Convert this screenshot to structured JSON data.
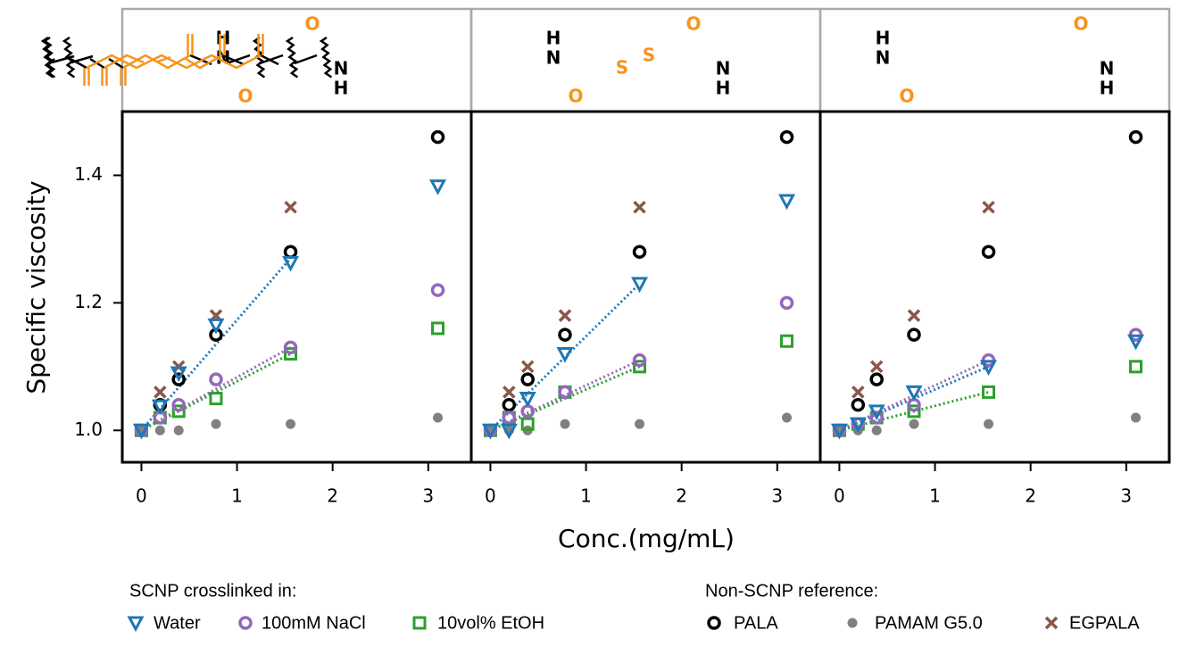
{
  "chart_data": [
    {
      "type": "scatter",
      "xlabel": "Conc.(mg/mL)",
      "ylabel": "Specific viscosity",
      "legend_titles": [
        "SCNP crosslinked in:",
        "Non-SCNP reference:"
      ],
      "structure_atoms": [
        "H",
        "N",
        "O",
        "O",
        "N",
        "H"
      ],
      "x": [
        0,
        0.195,
        0.39,
        0.78,
        1.56,
        3.1
      ],
      "fit_x": [
        0,
        1.56
      ],
      "xlim": [
        -0.2,
        3.45
      ],
      "ylim": [
        0.95,
        1.5
      ],
      "xticks": [
        0,
        1,
        2,
        3
      ],
      "yticks": [
        {
          "value": 1,
          "label": "1.0"
        },
        1.2,
        1.4
      ],
      "series": [
        {
          "name": "Water",
          "color": "#1f77b4",
          "marker": "triangle-down",
          "values": [
            1.0,
            1.038,
            1.09,
            1.165,
            1.263,
            1.383
          ],
          "fit": [
            1.0,
            1.27
          ]
        },
        {
          "name": "100mM NaCl",
          "color": "#9467bd",
          "marker": "circle",
          "values": [
            1.0,
            1.02,
            1.04,
            1.08,
            1.13,
            1.22
          ],
          "fit": [
            1.0,
            1.13
          ]
        },
        {
          "name": "10vol% EtOH",
          "color": "#2ca02c",
          "marker": "square",
          "values": [
            1.0,
            1.02,
            1.03,
            1.05,
            1.12,
            1.16
          ],
          "fit": [
            1.0,
            1.12
          ]
        },
        {
          "name": "PALA",
          "color": "#000000",
          "marker": "circle",
          "values": [
            null,
            1.04,
            1.08,
            1.15,
            1.28,
            1.46
          ]
        },
        {
          "name": "PAMAM G5.0",
          "color": "#808080",
          "marker": "dot",
          "values": [
            1.0,
            1.0,
            1.0,
            1.01,
            1.01,
            1.02
          ]
        },
        {
          "name": "EGPALA",
          "color": "#8c564b",
          "marker": "x",
          "values": [
            null,
            1.06,
            1.1,
            1.18,
            1.35,
            null
          ]
        }
      ]
    },
    {
      "type": "scatter",
      "structure_atoms": [
        "H",
        "N",
        "O",
        "S",
        "S",
        "O",
        "N",
        "H"
      ],
      "x": [
        0,
        0.195,
        0.39,
        0.78,
        1.56,
        3.1
      ],
      "fit_x": [
        0,
        1.56
      ],
      "xlim": [
        -0.2,
        3.45
      ],
      "ylim": [
        0.95,
        1.5
      ],
      "xticks": [
        0,
        1,
        2,
        3
      ],
      "series": [
        {
          "name": "Water",
          "color": "#1f77b4",
          "marker": "triangle-down",
          "values": [
            1.0,
            1.0,
            1.05,
            1.12,
            1.23,
            1.36
          ],
          "fit": [
            1.0,
            1.23
          ]
        },
        {
          "name": "100mM NaCl",
          "color": "#9467bd",
          "marker": "circle",
          "values": [
            1.0,
            1.02,
            1.03,
            1.06,
            1.11,
            1.2
          ],
          "fit": [
            1.0,
            1.11
          ]
        },
        {
          "name": "10vol% EtOH",
          "color": "#2ca02c",
          "marker": "square",
          "values": [
            1.0,
            1.02,
            1.01,
            1.06,
            1.1,
            1.14
          ],
          "fit": [
            1.0,
            1.1
          ]
        },
        {
          "name": "PALA",
          "color": "#000000",
          "marker": "circle",
          "values": [
            null,
            1.04,
            1.08,
            1.15,
            1.28,
            1.46
          ]
        },
        {
          "name": "PAMAM G5.0",
          "color": "#808080",
          "marker": "dot",
          "values": [
            1.0,
            1.0,
            1.0,
            1.01,
            1.01,
            1.02
          ]
        },
        {
          "name": "EGPALA",
          "color": "#8c564b",
          "marker": "x",
          "values": [
            null,
            1.06,
            1.1,
            1.18,
            1.35,
            null
          ]
        }
      ]
    },
    {
      "type": "scatter",
      "structure_atoms": [
        "H",
        "N",
        "O",
        "O",
        "N",
        "H"
      ],
      "x": [
        0,
        0.195,
        0.39,
        0.78,
        1.56,
        3.1
      ],
      "fit_x": [
        0,
        1.56
      ],
      "xlim": [
        -0.2,
        3.45
      ],
      "ylim": [
        0.95,
        1.5
      ],
      "xticks": [
        0,
        1,
        2,
        3
      ],
      "series": [
        {
          "name": "Water",
          "color": "#1f77b4",
          "marker": "triangle-down",
          "values": [
            1.0,
            1.01,
            1.03,
            1.06,
            1.1,
            1.14
          ],
          "fit": [
            1.0,
            1.1
          ]
        },
        {
          "name": "100mM NaCl",
          "color": "#9467bd",
          "marker": "circle",
          "values": [
            1.0,
            1.01,
            1.02,
            1.04,
            1.11,
            1.15
          ],
          "fit": [
            1.0,
            1.11
          ]
        },
        {
          "name": "10vol% EtOH",
          "color": "#2ca02c",
          "marker": "square",
          "values": [
            1.0,
            1.01,
            1.02,
            1.03,
            1.06,
            1.1
          ],
          "fit": [
            1.0,
            1.06
          ]
        },
        {
          "name": "PALA",
          "color": "#000000",
          "marker": "circle",
          "values": [
            null,
            1.04,
            1.08,
            1.15,
            1.28,
            1.46
          ]
        },
        {
          "name": "PAMAM G5.0",
          "color": "#808080",
          "marker": "dot",
          "values": [
            1.0,
            1.0,
            1.0,
            1.01,
            1.01,
            1.02
          ]
        },
        {
          "name": "EGPALA",
          "color": "#8c564b",
          "marker": "x",
          "values": [
            null,
            1.06,
            1.1,
            1.18,
            1.35,
            null
          ]
        }
      ]
    }
  ]
}
